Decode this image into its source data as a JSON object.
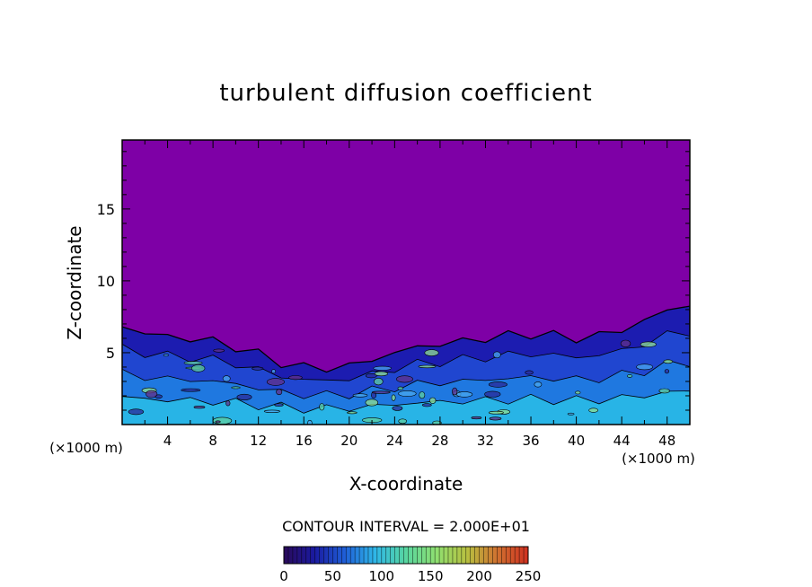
{
  "chart_data": {
    "type": "heatmap",
    "title": "turbulent diffusion coefficient",
    "xlabel": "X-coordinate",
    "ylabel": "Z-coordinate",
    "x_unit": "(×1000 m)",
    "xlim": [
      0,
      50
    ],
    "ylim": [
      0,
      19.8
    ],
    "x_ticks": [
      4,
      8,
      12,
      16,
      20,
      24,
      28,
      32,
      36,
      40,
      44,
      48
    ],
    "y_ticks": [
      5,
      10,
      15
    ],
    "contour_interval_label": "CONTOUR INTERVAL = 2.000E+01",
    "colorbar": {
      "ticks": [
        0,
        50,
        100,
        150,
        200,
        250
      ],
      "range": [
        0,
        250
      ],
      "colors": [
        "#2a0a5a",
        "#1a1aa0",
        "#1f5fd8",
        "#2fb8e8",
        "#58d6a0",
        "#8fe070",
        "#b8c040",
        "#d07030",
        "#d03020"
      ]
    },
    "background_value_color": "#7e00a6",
    "boundary_layer_top_km": [
      [
        0,
        6.8
      ],
      [
        2,
        6.4
      ],
      [
        4,
        6.1
      ],
      [
        6,
        6.0
      ],
      [
        8,
        5.8
      ],
      [
        10,
        5.4
      ],
      [
        12,
        4.9
      ],
      [
        14,
        4.3
      ],
      [
        16,
        4.0
      ],
      [
        18,
        3.9
      ],
      [
        20,
        4.1
      ],
      [
        22,
        4.5
      ],
      [
        24,
        5.0
      ],
      [
        26,
        5.4
      ],
      [
        28,
        5.6
      ],
      [
        30,
        5.8
      ],
      [
        32,
        6.0
      ],
      [
        34,
        6.2
      ],
      [
        36,
        6.3
      ],
      [
        38,
        6.2
      ],
      [
        40,
        6.0
      ],
      [
        42,
        6.2
      ],
      [
        44,
        6.6
      ],
      [
        46,
        7.2
      ],
      [
        48,
        8.0
      ],
      [
        50,
        8.3
      ]
    ]
  }
}
